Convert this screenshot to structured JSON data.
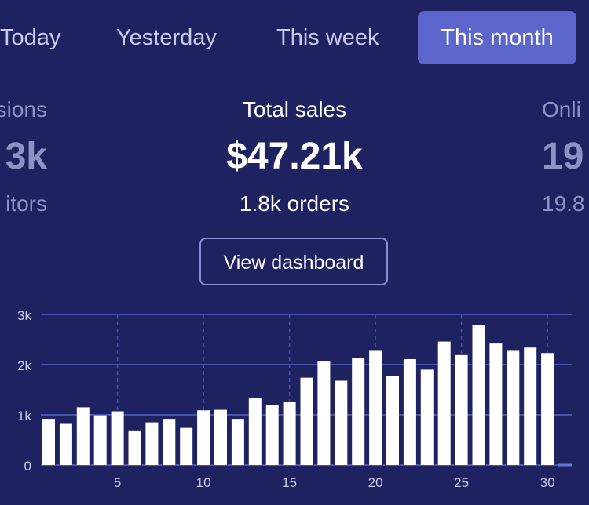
{
  "tabs": [
    {
      "label": "Today",
      "active": false
    },
    {
      "label": "Yesterday",
      "active": false
    },
    {
      "label": "This week",
      "active": false
    },
    {
      "label": "This month",
      "active": true
    }
  ],
  "stats": {
    "left": {
      "label": "sions",
      "value": "3k",
      "sub": "itors"
    },
    "center": {
      "label": "Total sales",
      "value": "$47.21k",
      "sub": "1.8k orders"
    },
    "right": {
      "label": "Onli",
      "value": "19",
      "sub": "19.8"
    }
  },
  "view_dashboard_label": "View dashboard",
  "colors": {
    "background": "#1f2261",
    "accent": "#5c66cc",
    "bar": "#ffffff",
    "grid": "#4a52b0",
    "muted_text": "#8d91c4"
  },
  "chart_data": {
    "type": "bar",
    "x": [
      1,
      2,
      3,
      4,
      5,
      6,
      7,
      8,
      9,
      10,
      11,
      12,
      13,
      14,
      15,
      16,
      17,
      18,
      19,
      20,
      21,
      22,
      23,
      24,
      25,
      26,
      27,
      28,
      29,
      30
    ],
    "values": [
      920,
      820,
      1150,
      990,
      1070,
      690,
      850,
      920,
      740,
      1090,
      1100,
      920,
      1330,
      1190,
      1250,
      1740,
      2070,
      1680,
      2130,
      2290,
      1780,
      2110,
      1900,
      2460,
      2190,
      2790,
      2420,
      2290,
      2340,
      2230
    ],
    "ylim": [
      0,
      3000
    ],
    "yticks": [
      {
        "value": 0,
        "label": "0"
      },
      {
        "value": 1000,
        "label": "1k"
      },
      {
        "value": 2000,
        "label": "2k"
      },
      {
        "value": 3000,
        "label": "3k"
      }
    ],
    "xticks": [
      {
        "value": 5,
        "label": "5"
      },
      {
        "value": 10,
        "label": "10"
      },
      {
        "value": 15,
        "label": "15"
      },
      {
        "value": 20,
        "label": "20"
      },
      {
        "value": 25,
        "label": "25"
      },
      {
        "value": 30,
        "label": "30"
      }
    ],
    "grid": true
  }
}
